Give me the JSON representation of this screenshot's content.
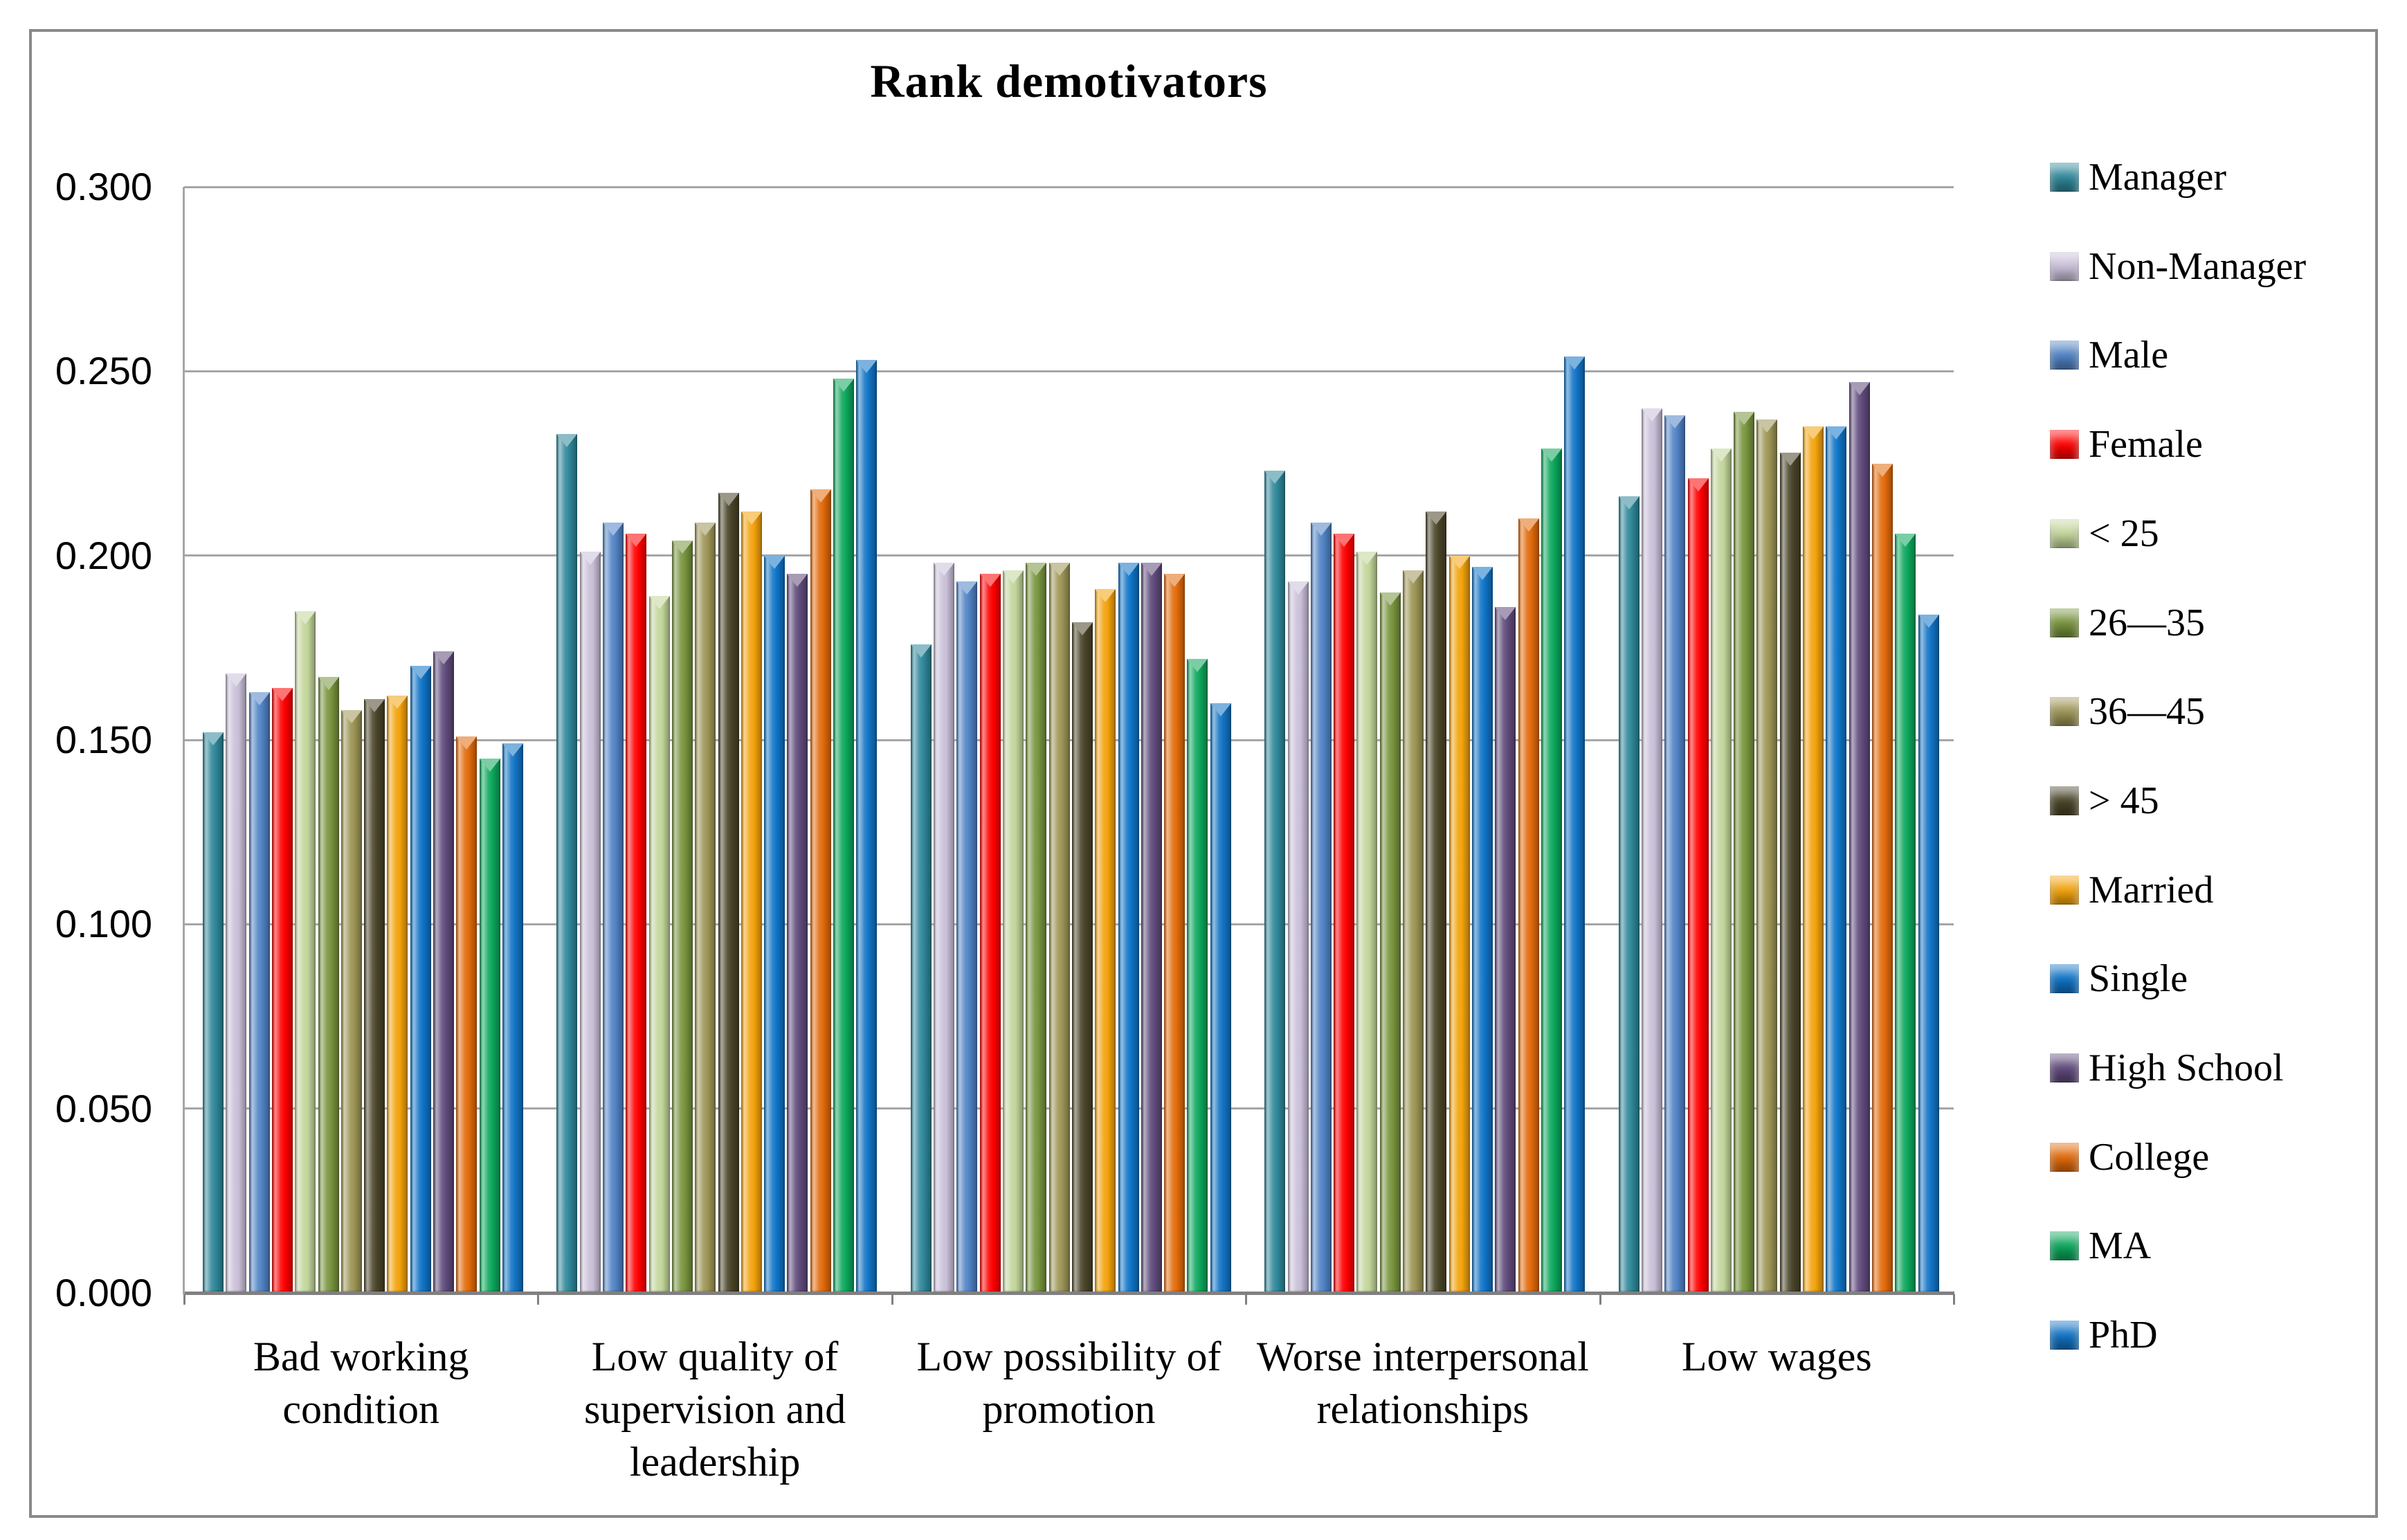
{
  "figure": {
    "title": "Rank demotivators"
  },
  "chart_data": {
    "type": "bar",
    "title": "Rank demotivators",
    "categories": [
      "Bad working condition",
      "Low quality of supervision and leadership",
      "Low possibility of promotion",
      "Worse interpersonal relationships",
      "Low wages"
    ],
    "series": [
      {
        "name": "Manager",
        "color": "#2E8799",
        "values": [
          0.152,
          0.233,
          0.176,
          0.223,
          0.216
        ]
      },
      {
        "name": "Non-Manager",
        "color": "#C9BFD8",
        "values": [
          0.168,
          0.201,
          0.198,
          0.193,
          0.24
        ]
      },
      {
        "name": "Male",
        "color": "#5082C4",
        "values": [
          0.163,
          0.209,
          0.193,
          0.209,
          0.238
        ]
      },
      {
        "name": "Female",
        "color": "#FE0000",
        "values": [
          0.164,
          0.206,
          0.195,
          0.206,
          0.221
        ]
      },
      {
        "name": "< 25",
        "color": "#C2D59A",
        "values": [
          0.185,
          0.189,
          0.196,
          0.201,
          0.229
        ]
      },
      {
        "name": "26—35",
        "color": "#77933D",
        "values": [
          0.167,
          0.204,
          0.198,
          0.19,
          0.239
        ]
      },
      {
        "name": "36—45",
        "color": "#9C9455",
        "values": [
          0.158,
          0.209,
          0.198,
          0.196,
          0.237
        ]
      },
      {
        "name": "> 45",
        "color": "#494428",
        "values": [
          0.161,
          0.217,
          0.182,
          0.212,
          0.228
        ]
      },
      {
        "name": "Married",
        "color": "#F2A20C",
        "values": [
          0.162,
          0.212,
          0.191,
          0.2,
          0.235
        ]
      },
      {
        "name": "Single",
        "color": "#0E73C6",
        "values": [
          0.17,
          0.2,
          0.198,
          0.197,
          0.235
        ]
      },
      {
        "name": "High School",
        "color": "#5F4A7B",
        "values": [
          0.174,
          0.195,
          0.198,
          0.186,
          0.247
        ]
      },
      {
        "name": "College",
        "color": "#E16A0B",
        "values": [
          0.151,
          0.218,
          0.195,
          0.21,
          0.225
        ]
      },
      {
        "name": "MA",
        "color": "#0CA65B",
        "values": [
          0.145,
          0.248,
          0.172,
          0.229,
          0.206
        ]
      },
      {
        "name": "PhD",
        "color": "#1173C4",
        "values": [
          0.149,
          0.253,
          0.16,
          0.254,
          0.184
        ]
      }
    ],
    "ylim": [
      0.0,
      0.3
    ],
    "ytick_step": 0.05,
    "ytick_labels": [
      "0.000",
      "0.050",
      "0.100",
      "0.150",
      "0.200",
      "0.250",
      "0.300"
    ],
    "grid": true,
    "legend_position": "right",
    "colors": {
      "gridline": "#A6A6A6",
      "axis_line": "#808080",
      "frame_border": "#898989",
      "text": "#000000"
    }
  }
}
